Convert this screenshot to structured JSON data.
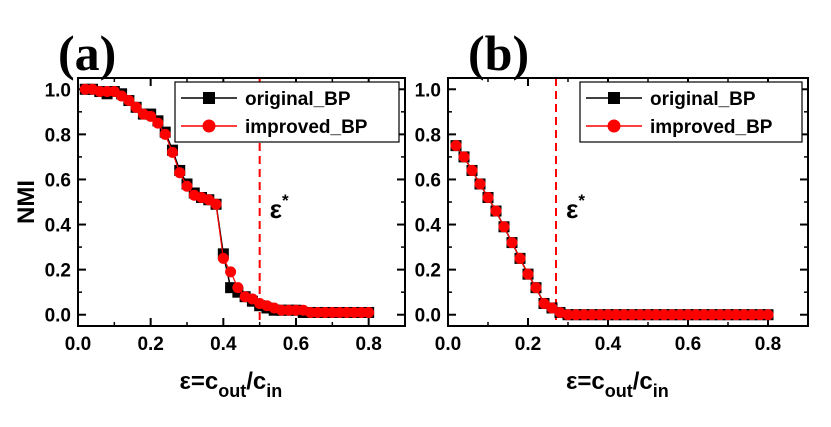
{
  "chart_data": [
    {
      "type": "line",
      "panel_label": "(a)",
      "ylabel": "NMI",
      "xlabel": {
        "base": "ε=c",
        "sub1": "out",
        "mid": "/c",
        "sub2": "in"
      },
      "xlim": [
        0.0,
        0.9
      ],
      "ylim": [
        -0.05,
        1.05
      ],
      "xticks": [
        "0.0",
        "0.2",
        "0.4",
        "0.6",
        "0.8"
      ],
      "yticks": [
        "0.0",
        "0.2",
        "0.4",
        "0.6",
        "0.8",
        "1.0"
      ],
      "legend": {
        "position": "top-right",
        "entries": [
          "original_BP",
          "improved_BP"
        ]
      },
      "threshold": {
        "x": 0.5,
        "label": "ε",
        "sup": "*",
        "color": "#ff0000"
      },
      "series": [
        {
          "name": "original_BP",
          "marker": "square",
          "color": "#000000",
          "x": [
            0.02,
            0.04,
            0.06,
            0.08,
            0.1,
            0.12,
            0.14,
            0.16,
            0.18,
            0.2,
            0.22,
            0.24,
            0.26,
            0.28,
            0.3,
            0.32,
            0.34,
            0.36,
            0.38,
            0.4,
            0.42,
            0.44,
            0.46,
            0.48,
            0.5,
            0.52,
            0.54,
            0.56,
            0.58,
            0.6,
            0.62,
            0.64,
            0.66,
            0.68,
            0.7,
            0.72,
            0.74,
            0.76,
            0.78,
            0.8
          ],
          "y": [
            1.0,
            1.0,
            0.99,
            0.98,
            0.99,
            0.98,
            0.95,
            0.92,
            0.89,
            0.89,
            0.86,
            0.81,
            0.73,
            0.64,
            0.58,
            0.54,
            0.52,
            0.51,
            0.49,
            0.27,
            0.12,
            0.1,
            0.08,
            0.06,
            0.04,
            0.03,
            0.02,
            0.02,
            0.02,
            0.02,
            0.01,
            0.01,
            0.01,
            0.01,
            0.01,
            0.01,
            0.01,
            0.01,
            0.01,
            0.01
          ]
        },
        {
          "name": "improved_BP",
          "marker": "circle",
          "color": "#ff0000",
          "x": [
            0.02,
            0.04,
            0.06,
            0.08,
            0.1,
            0.12,
            0.14,
            0.16,
            0.18,
            0.2,
            0.22,
            0.24,
            0.26,
            0.28,
            0.3,
            0.32,
            0.34,
            0.36,
            0.38,
            0.4,
            0.42,
            0.44,
            0.46,
            0.48,
            0.5,
            0.52,
            0.54,
            0.56,
            0.58,
            0.6,
            0.62,
            0.64,
            0.66,
            0.68,
            0.7,
            0.72,
            0.74,
            0.76,
            0.78,
            0.8
          ],
          "y": [
            1.0,
            1.0,
            0.99,
            0.99,
            0.99,
            0.97,
            0.95,
            0.92,
            0.89,
            0.88,
            0.85,
            0.8,
            0.72,
            0.63,
            0.57,
            0.53,
            0.52,
            0.51,
            0.49,
            0.25,
            0.19,
            0.12,
            0.08,
            0.07,
            0.05,
            0.04,
            0.03,
            0.02,
            0.02,
            0.02,
            0.02,
            0.01,
            0.01,
            0.01,
            0.01,
            0.01,
            0.01,
            0.01,
            0.01,
            0.01
          ]
        }
      ]
    },
    {
      "type": "line",
      "panel_label": "(b)",
      "ylabel": "",
      "xlabel": {
        "base": "ε=c",
        "sub1": "out",
        "mid": "/c",
        "sub2": "in"
      },
      "xlim": [
        0.0,
        0.9
      ],
      "ylim": [
        -0.05,
        1.05
      ],
      "xticks": [
        "0.0",
        "0.2",
        "0.4",
        "0.6",
        "0.8"
      ],
      "yticks": [
        "0.0",
        "0.2",
        "0.4",
        "0.6",
        "0.8",
        "1.0"
      ],
      "legend": {
        "position": "top-right",
        "entries": [
          "original_BP",
          "improved_BP"
        ]
      },
      "threshold": {
        "x": 0.27,
        "label": "ε",
        "sup": "*",
        "color": "#ff0000"
      },
      "series": [
        {
          "name": "original_BP",
          "marker": "square",
          "color": "#000000",
          "x": [
            0.02,
            0.04,
            0.06,
            0.08,
            0.1,
            0.12,
            0.14,
            0.16,
            0.18,
            0.2,
            0.22,
            0.24,
            0.26,
            0.28,
            0.3,
            0.32,
            0.34,
            0.36,
            0.38,
            0.4,
            0.42,
            0.44,
            0.46,
            0.48,
            0.5,
            0.52,
            0.54,
            0.56,
            0.58,
            0.6,
            0.62,
            0.64,
            0.66,
            0.68,
            0.7,
            0.72,
            0.74,
            0.76,
            0.78,
            0.8
          ],
          "y": [
            0.75,
            0.7,
            0.64,
            0.58,
            0.52,
            0.46,
            0.39,
            0.32,
            0.25,
            0.18,
            0.12,
            0.05,
            0.03,
            0.01,
            0.0,
            0.0,
            0.0,
            0.0,
            0.0,
            0.0,
            0.0,
            0.0,
            0.0,
            0.0,
            0.0,
            0.0,
            0.0,
            0.0,
            0.0,
            0.0,
            0.0,
            0.0,
            0.0,
            0.0,
            0.0,
            0.0,
            0.0,
            0.0,
            0.0,
            0.0
          ]
        },
        {
          "name": "improved_BP",
          "marker": "circle",
          "color": "#ff0000",
          "x": [
            0.02,
            0.04,
            0.06,
            0.08,
            0.1,
            0.12,
            0.14,
            0.16,
            0.18,
            0.2,
            0.22,
            0.24,
            0.26,
            0.28,
            0.3,
            0.32,
            0.34,
            0.36,
            0.38,
            0.4,
            0.42,
            0.44,
            0.46,
            0.48,
            0.5,
            0.52,
            0.54,
            0.56,
            0.58,
            0.6,
            0.62,
            0.64,
            0.66,
            0.68,
            0.7,
            0.72,
            0.74,
            0.76,
            0.78,
            0.8
          ],
          "y": [
            0.75,
            0.7,
            0.64,
            0.58,
            0.52,
            0.46,
            0.39,
            0.32,
            0.25,
            0.18,
            0.12,
            0.05,
            0.03,
            0.01,
            0.0,
            0.0,
            0.0,
            0.0,
            0.0,
            0.0,
            0.0,
            0.0,
            0.0,
            0.0,
            0.0,
            0.0,
            0.0,
            0.0,
            0.0,
            0.0,
            0.0,
            0.0,
            0.0,
            0.0,
            0.0,
            0.0,
            0.0,
            0.0,
            0.0,
            0.0
          ]
        }
      ]
    }
  ]
}
